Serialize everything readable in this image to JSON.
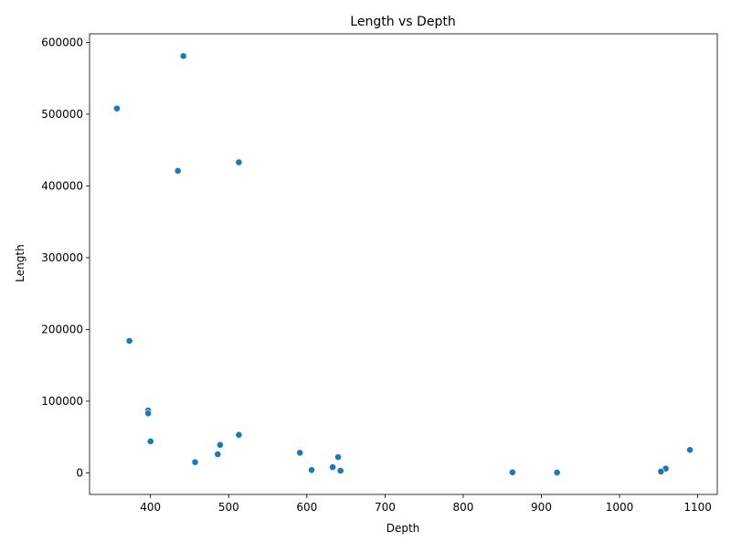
{
  "chart_data": {
    "type": "scatter",
    "title": "Length vs Depth",
    "xlabel": "Depth",
    "ylabel": "Length",
    "xlim": [
      322,
      1125
    ],
    "ylim": [
      -30000,
      612000
    ],
    "xticks": [
      400,
      500,
      600,
      700,
      800,
      900,
      1000,
      1100
    ],
    "yticks": [
      0,
      100000,
      200000,
      300000,
      400000,
      500000,
      600000
    ],
    "marker_color": "#1f77b4",
    "grid": false,
    "points": [
      {
        "x": 442,
        "y": 581000
      },
      {
        "x": 357,
        "y": 508000
      },
      {
        "x": 513,
        "y": 433000
      },
      {
        "x": 435,
        "y": 421000
      },
      {
        "x": 373,
        "y": 184000
      },
      {
        "x": 397,
        "y": 87000
      },
      {
        "x": 397,
        "y": 83000
      },
      {
        "x": 400,
        "y": 44000
      },
      {
        "x": 513,
        "y": 53000
      },
      {
        "x": 489,
        "y": 39000
      },
      {
        "x": 486,
        "y": 26000
      },
      {
        "x": 457,
        "y": 15000
      },
      {
        "x": 591,
        "y": 28000
      },
      {
        "x": 640,
        "y": 22000
      },
      {
        "x": 1090,
        "y": 32000
      },
      {
        "x": 633,
        "y": 8000
      },
      {
        "x": 606,
        "y": 4000
      },
      {
        "x": 643,
        "y": 3000
      },
      {
        "x": 863,
        "y": 800
      },
      {
        "x": 920,
        "y": 500
      },
      {
        "x": 1059,
        "y": 6000
      },
      {
        "x": 1053,
        "y": 2000
      }
    ]
  }
}
